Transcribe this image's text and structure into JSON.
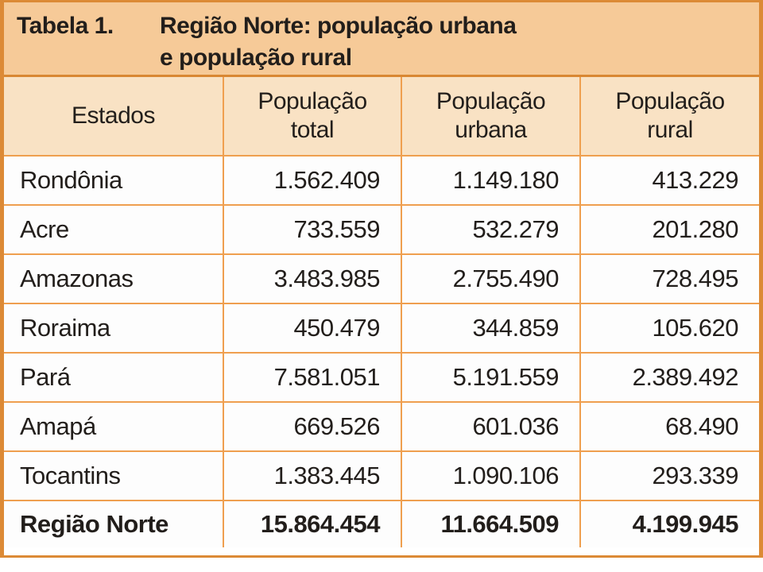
{
  "title": {
    "label": "Tabela 1.",
    "line1": "Região Norte: população urbana",
    "line2": "e população rural"
  },
  "table": {
    "columns": [
      "Estados",
      "População total",
      "População urbana",
      "População rural"
    ],
    "rows": [
      {
        "estado": "Rondônia",
        "total": "1.562.409",
        "urbana": "1.149.180",
        "rural": "413.229"
      },
      {
        "estado": "Acre",
        "total": "733.559",
        "urbana": "532.279",
        "rural": "201.280"
      },
      {
        "estado": "Amazonas",
        "total": "3.483.985",
        "urbana": "2.755.490",
        "rural": "728.495"
      },
      {
        "estado": "Roraima",
        "total": "450.479",
        "urbana": "344.859",
        "rural": "105.620"
      },
      {
        "estado": "Pará",
        "total": "7.581.051",
        "urbana": "5.191.559",
        "rural": "2.389.492"
      },
      {
        "estado": "Amapá",
        "total": "669.526",
        "urbana": "601.036",
        "rural": "68.490"
      },
      {
        "estado": "Tocantins",
        "total": "1.383.445",
        "urbana": "1.090.106",
        "rural": "293.339"
      }
    ],
    "total_row": {
      "estado": "Região Norte",
      "total": "15.864.454",
      "urbana": "11.664.509",
      "rural": "4.199.945"
    }
  },
  "colors": {
    "outer_border": "#dc8a36",
    "grid_line": "#ef9f4f",
    "title_background": "#f6ca98",
    "header_background": "#f9e2c4",
    "cell_background": "#fdfdfd",
    "text": "#221e1b"
  },
  "chart_data": {
    "type": "table",
    "title": "Tabela 1. Região Norte: população urbana e população rural",
    "columns": [
      "Estados",
      "População total",
      "População urbana",
      "População rural"
    ],
    "rows": [
      [
        "Rondônia",
        1562409,
        1149180,
        413229
      ],
      [
        "Acre",
        733559,
        532279,
        201280
      ],
      [
        "Amazonas",
        3483985,
        2755490,
        728495
      ],
      [
        "Roraima",
        450479,
        344859,
        105620
      ],
      [
        "Pará",
        7581051,
        5191559,
        2389492
      ],
      [
        "Amapá",
        669526,
        601036,
        68490
      ],
      [
        "Tocantins",
        1383445,
        1090106,
        293339
      ],
      [
        "Região Norte",
        15864454,
        11664509,
        4199945
      ]
    ]
  }
}
